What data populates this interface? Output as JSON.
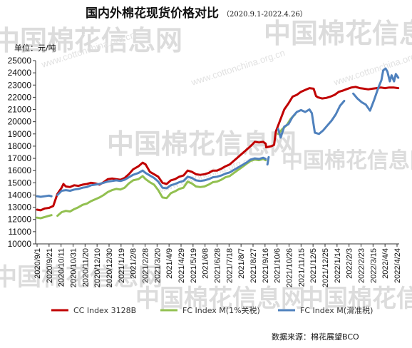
{
  "chart_data": {
    "type": "line",
    "title": "国内外棉花现货价格对比",
    "subtitle": "（2020.9.1-2022.4.26）",
    "unit_label": "单位：元/吨",
    "ylim": [
      10000,
      25000
    ],
    "y_ticks": [
      10000,
      11000,
      12000,
      13000,
      14000,
      15000,
      16000,
      17000,
      18000,
      19000,
      20000,
      21000,
      22000,
      23000,
      24000,
      25000
    ],
    "x_range": [
      "2020-09-01",
      "2022-04-26"
    ],
    "x_ticks": [
      "2020/9/1",
      "2020/9/21",
      "2020/10/11",
      "2020/10/31",
      "2020/11/20",
      "2020/12/10",
      "2020/12/30",
      "2021/1/19",
      "2021/2/8",
      "2021/2/28",
      "2021/3/20",
      "2021/4/9",
      "2021/4/29",
      "2021/5/19",
      "2021/6/8",
      "2021/6/28",
      "2021/7/18",
      "2021/8/7",
      "2021/8/27",
      "2021/9/16",
      "2021/10/6",
      "2021/10/26",
      "2021/11/15",
      "2021/12/5",
      "2021/12/25",
      "2022/1/14",
      "2022/2/3",
      "2022/2/23",
      "2022/3/15",
      "2022/4/4",
      "2022/4/24"
    ],
    "grid": false,
    "legend_position": "bottom",
    "series": [
      {
        "name": "CC Index 3128B",
        "color": "#c00000",
        "points": [
          [
            "2020-09-01",
            12800
          ],
          [
            "2020-09-07",
            12750
          ],
          [
            "2020-09-14",
            12900
          ],
          [
            "2020-09-21",
            12950
          ],
          [
            "2020-09-28",
            13100
          ],
          [
            "2020-10-05",
            14100
          ],
          [
            "2020-10-12",
            14600
          ],
          [
            "2020-10-15",
            14900
          ],
          [
            "2020-10-19",
            14700
          ],
          [
            "2020-10-26",
            14650
          ],
          [
            "2020-11-02",
            14800
          ],
          [
            "2020-11-09",
            14750
          ],
          [
            "2020-11-16",
            14850
          ],
          [
            "2020-11-23",
            14900
          ],
          [
            "2020-11-30",
            15000
          ],
          [
            "2020-12-07",
            14950
          ],
          [
            "2020-12-14",
            14850
          ],
          [
            "2020-12-21",
            15050
          ],
          [
            "2020-12-28",
            15300
          ],
          [
            "2021-01-04",
            15350
          ],
          [
            "2021-01-11",
            15300
          ],
          [
            "2021-01-18",
            15250
          ],
          [
            "2021-01-25",
            15400
          ],
          [
            "2021-02-01",
            15700
          ],
          [
            "2021-02-08",
            16100
          ],
          [
            "2021-02-17",
            16350
          ],
          [
            "2021-02-24",
            16650
          ],
          [
            "2021-03-01",
            16500
          ],
          [
            "2021-03-08",
            15900
          ],
          [
            "2021-03-15",
            15700
          ],
          [
            "2021-03-22",
            15500
          ],
          [
            "2021-03-29",
            15000
          ],
          [
            "2021-04-05",
            14900
          ],
          [
            "2021-04-12",
            15200
          ],
          [
            "2021-04-19",
            15300
          ],
          [
            "2021-04-26",
            15500
          ],
          [
            "2021-05-03",
            15600
          ],
          [
            "2021-05-10",
            16000
          ],
          [
            "2021-05-17",
            15900
          ],
          [
            "2021-05-24",
            15700
          ],
          [
            "2021-05-31",
            15650
          ],
          [
            "2021-06-07",
            15700
          ],
          [
            "2021-06-14",
            15800
          ],
          [
            "2021-06-21",
            16000
          ],
          [
            "2021-06-28",
            16000
          ],
          [
            "2021-07-05",
            16150
          ],
          [
            "2021-07-12",
            16350
          ],
          [
            "2021-07-19",
            16500
          ],
          [
            "2021-07-26",
            16800
          ],
          [
            "2021-08-02",
            17100
          ],
          [
            "2021-08-09",
            17400
          ],
          [
            "2021-08-16",
            17700
          ],
          [
            "2021-08-23",
            18000
          ],
          [
            "2021-08-30",
            18350
          ],
          [
            "2021-09-06",
            18300
          ],
          [
            "2021-09-13",
            18350
          ],
          [
            "2021-09-17",
            18200
          ],
          [
            "2021-09-18",
            17900
          ],
          [
            "2021-09-27",
            18000
          ],
          [
            "2021-10-01",
            18100
          ],
          [
            "2021-10-04",
            19200
          ],
          [
            "2021-10-11",
            20100
          ],
          [
            "2021-10-18",
            21000
          ],
          [
            "2021-10-25",
            21500
          ],
          [
            "2021-11-01",
            22050
          ],
          [
            "2021-11-08",
            22200
          ],
          [
            "2021-11-15",
            22450
          ],
          [
            "2021-11-22",
            22600
          ],
          [
            "2021-11-29",
            22750
          ],
          [
            "2021-12-06",
            22700
          ],
          [
            "2021-12-10",
            22100
          ],
          [
            "2021-12-13",
            22000
          ],
          [
            "2021-12-20",
            21900
          ],
          [
            "2021-12-27",
            21950
          ],
          [
            "2022-01-03",
            22050
          ],
          [
            "2022-01-10",
            22200
          ],
          [
            "2022-01-17",
            22450
          ],
          [
            "2022-01-24",
            22550
          ],
          [
            "2022-01-29",
            22650
          ],
          [
            "2022-02-07",
            22800
          ],
          [
            "2022-02-14",
            22850
          ],
          [
            "2022-02-21",
            22750
          ],
          [
            "2022-02-28",
            22700
          ],
          [
            "2022-03-07",
            22650
          ],
          [
            "2022-03-14",
            22700
          ],
          [
            "2022-03-21",
            22750
          ],
          [
            "2022-03-28",
            22800
          ],
          [
            "2022-04-04",
            22750
          ],
          [
            "2022-04-11",
            22800
          ],
          [
            "2022-04-18",
            22800
          ],
          [
            "2022-04-26",
            22750
          ]
        ]
      },
      {
        "name": "FC Index M(1%关税)",
        "color": "#92c050",
        "points": [
          [
            "2020-09-01",
            12150
          ],
          [
            "2020-09-07",
            12100
          ],
          [
            "2020-09-14",
            12200
          ],
          [
            "2020-09-21",
            12300
          ],
          [
            "2020-09-25",
            12350
          ],
          null,
          [
            "2020-10-05",
            12300
          ],
          [
            "2020-10-12",
            12600
          ],
          [
            "2020-10-19",
            12700
          ],
          [
            "2020-10-26",
            12650
          ],
          [
            "2020-11-02",
            12850
          ],
          [
            "2020-11-09",
            13000
          ],
          [
            "2020-11-16",
            13200
          ],
          [
            "2020-11-23",
            13300
          ],
          [
            "2020-11-30",
            13500
          ],
          [
            "2020-12-07",
            13650
          ],
          [
            "2020-12-14",
            13800
          ],
          [
            "2020-12-21",
            14000
          ],
          [
            "2020-12-28",
            14250
          ],
          [
            "2021-01-04",
            14400
          ],
          [
            "2021-01-11",
            14500
          ],
          [
            "2021-01-18",
            14450
          ],
          [
            "2021-01-25",
            14600
          ],
          [
            "2021-02-01",
            14950
          ],
          [
            "2021-02-08",
            15200
          ],
          [
            "2021-02-17",
            15300
          ],
          [
            "2021-02-24",
            15550
          ],
          [
            "2021-03-01",
            15300
          ],
          [
            "2021-03-08",
            15050
          ],
          [
            "2021-03-15",
            14850
          ],
          [
            "2021-03-22",
            14400
          ],
          [
            "2021-03-29",
            13800
          ],
          [
            "2021-04-05",
            13750
          ],
          [
            "2021-04-12",
            14150
          ],
          [
            "2021-04-19",
            14300
          ],
          [
            "2021-04-26",
            14500
          ],
          [
            "2021-05-03",
            14600
          ],
          [
            "2021-05-10",
            15100
          ],
          [
            "2021-05-17",
            14950
          ],
          [
            "2021-05-24",
            14700
          ],
          [
            "2021-05-31",
            14650
          ],
          [
            "2021-06-07",
            14700
          ],
          [
            "2021-06-14",
            14850
          ],
          [
            "2021-06-21",
            15050
          ],
          [
            "2021-06-28",
            15100
          ],
          [
            "2021-07-05",
            15250
          ],
          [
            "2021-07-12",
            15450
          ],
          [
            "2021-07-19",
            15550
          ],
          [
            "2021-07-26",
            15800
          ],
          [
            "2021-08-02",
            16050
          ],
          [
            "2021-08-09",
            16300
          ],
          [
            "2021-08-16",
            16550
          ],
          [
            "2021-08-23",
            16800
          ],
          [
            "2021-08-30",
            16900
          ],
          [
            "2021-09-06",
            16850
          ],
          [
            "2021-09-13",
            16950
          ],
          [
            "2021-09-17",
            16850
          ],
          null,
          [
            "2021-10-08",
            19000
          ],
          [
            "2021-10-15",
            19400
          ],
          [
            "2021-10-22",
            19700
          ],
          [
            "2021-10-29",
            20250
          ],
          [
            "2021-11-05",
            20600
          ]
        ]
      },
      {
        "name": "FC Index M(滑准税)",
        "color": "#4f81bd",
        "points": [
          [
            "2020-09-01",
            13900
          ],
          [
            "2020-09-07",
            13850
          ],
          [
            "2020-09-14",
            13900
          ],
          [
            "2020-09-21",
            13950
          ],
          [
            "2020-09-25",
            13900
          ],
          null,
          [
            "2020-10-05",
            14000
          ],
          [
            "2020-10-12",
            14350
          ],
          [
            "2020-10-19",
            14400
          ],
          [
            "2020-10-26",
            14350
          ],
          [
            "2020-11-02",
            14450
          ],
          [
            "2020-11-09",
            14500
          ],
          [
            "2020-11-16",
            14600
          ],
          [
            "2020-11-23",
            14650
          ],
          [
            "2020-11-30",
            14800
          ],
          [
            "2020-12-07",
            14850
          ],
          [
            "2020-12-14",
            14900
          ],
          [
            "2020-12-21",
            15000
          ],
          [
            "2020-12-28",
            15100
          ],
          [
            "2021-01-04",
            15150
          ],
          [
            "2021-01-11",
            15200
          ],
          [
            "2021-01-18",
            15150
          ],
          [
            "2021-01-25",
            15250
          ],
          [
            "2021-02-01",
            15450
          ],
          [
            "2021-02-08",
            15650
          ],
          [
            "2021-02-17",
            15800
          ],
          [
            "2021-02-24",
            16000
          ],
          [
            "2021-03-01",
            15800
          ],
          [
            "2021-03-08",
            15600
          ],
          [
            "2021-03-15",
            15400
          ],
          [
            "2021-03-22",
            15100
          ],
          [
            "2021-03-29",
            14600
          ],
          [
            "2021-04-05",
            14550
          ],
          [
            "2021-04-12",
            14800
          ],
          [
            "2021-04-19",
            14900
          ],
          [
            "2021-04-26",
            15050
          ],
          [
            "2021-05-03",
            15150
          ],
          [
            "2021-05-10",
            15500
          ],
          [
            "2021-05-17",
            15400
          ],
          [
            "2021-05-24",
            15200
          ],
          [
            "2021-05-31",
            15150
          ],
          [
            "2021-06-07",
            15200
          ],
          [
            "2021-06-14",
            15300
          ],
          [
            "2021-06-21",
            15450
          ],
          [
            "2021-06-28",
            15500
          ],
          [
            "2021-07-05",
            15600
          ],
          [
            "2021-07-12",
            15750
          ],
          [
            "2021-07-19",
            15850
          ],
          [
            "2021-07-26",
            16050
          ],
          [
            "2021-08-02",
            16250
          ],
          [
            "2021-08-09",
            16450
          ],
          [
            "2021-08-16",
            16650
          ],
          [
            "2021-08-23",
            16900
          ],
          [
            "2021-08-30",
            17000
          ],
          [
            "2021-09-06",
            16950
          ],
          [
            "2021-09-13",
            17050
          ],
          [
            "2021-09-17",
            16950
          ],
          null,
          [
            "2021-09-20",
            16500
          ],
          [
            "2021-09-22",
            17100
          ],
          null,
          [
            "2021-10-08",
            19400
          ],
          [
            "2021-10-12",
            18700
          ],
          [
            "2021-10-18",
            19600
          ],
          [
            "2021-10-25",
            19800
          ],
          [
            "2021-11-01",
            20400
          ],
          [
            "2021-11-08",
            20800
          ],
          [
            "2021-11-15",
            20950
          ],
          [
            "2021-11-22",
            20800
          ],
          [
            "2021-11-29",
            21000
          ],
          [
            "2021-12-03",
            20700
          ],
          [
            "2021-12-08",
            19100
          ],
          [
            "2021-12-15",
            19000
          ],
          [
            "2021-12-22",
            19300
          ],
          [
            "2021-12-29",
            19700
          ],
          [
            "2022-01-05",
            20100
          ],
          [
            "2022-01-12",
            20600
          ],
          [
            "2022-01-19",
            21300
          ],
          [
            "2022-01-26",
            21700
          ],
          null,
          [
            "2022-02-10",
            22300
          ],
          [
            "2022-02-17",
            21900
          ],
          [
            "2022-02-24",
            21600
          ],
          [
            "2022-03-03",
            21400
          ],
          [
            "2022-03-10",
            20900
          ],
          [
            "2022-03-17",
            21800
          ],
          [
            "2022-03-24",
            22800
          ],
          [
            "2022-03-29",
            23400
          ],
          [
            "2022-04-01",
            24200
          ],
          [
            "2022-04-05",
            24350
          ],
          [
            "2022-04-08",
            24100
          ],
          [
            "2022-04-12",
            23300
          ],
          [
            "2022-04-15",
            23800
          ],
          [
            "2022-04-19",
            23300
          ],
          [
            "2022-04-22",
            23900
          ],
          [
            "2022-04-26",
            23600
          ]
        ]
      }
    ],
    "source_label": "数据来源：棉花展望BCO"
  },
  "watermark": {
    "brand": "中国棉花信息网",
    "site": "www.cottonchina.org.cn"
  }
}
